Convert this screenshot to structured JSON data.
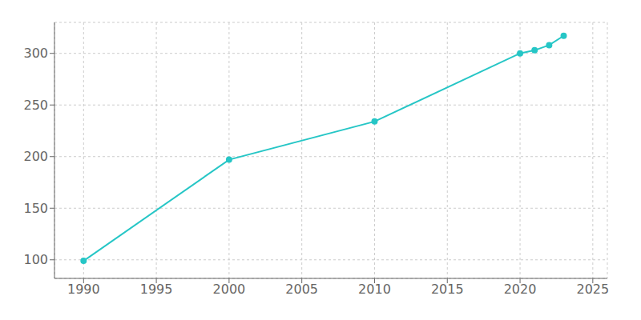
{
  "chart_data": {
    "type": "line",
    "x": [
      1990,
      2000,
      2010,
      2020,
      2021,
      2022,
      2023
    ],
    "values": [
      99,
      197,
      234,
      300,
      303,
      308,
      317
    ],
    "color": "#26c6c6",
    "marker": "o",
    "xlim": [
      1988,
      2026
    ],
    "ylim": [
      82,
      330
    ],
    "xticks": [
      1990,
      1995,
      2000,
      2005,
      2010,
      2015,
      2020,
      2025
    ],
    "yticks": [
      100,
      150,
      200,
      250,
      300
    ],
    "grid": true
  }
}
